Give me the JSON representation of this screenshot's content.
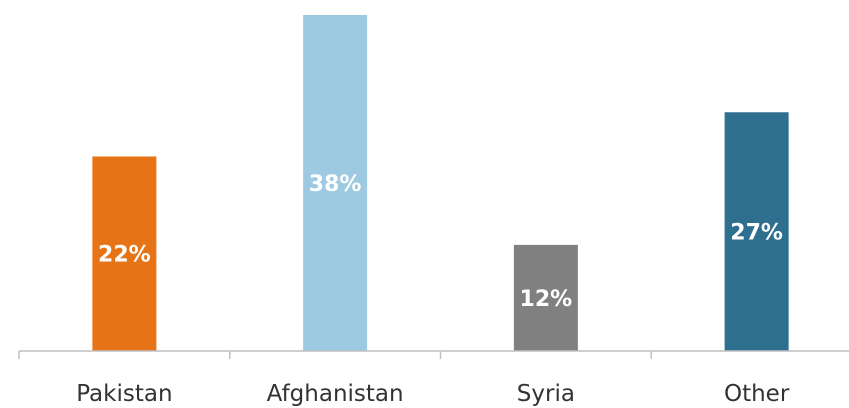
{
  "chart_data": {
    "type": "bar",
    "categories": [
      "Pakistan",
      "Afghanistan",
      "Syria",
      "Other"
    ],
    "values": [
      22,
      38,
      12,
      27
    ],
    "data_labels": [
      "22%",
      "38%",
      "12%",
      "27%"
    ],
    "colors": [
      "#e67316",
      "#9ecae1",
      "#808080",
      "#2e6e8e"
    ],
    "ylim": [
      0,
      38
    ],
    "grid": false,
    "legend": "none",
    "title": "",
    "xlabel": "",
    "ylabel": ""
  }
}
